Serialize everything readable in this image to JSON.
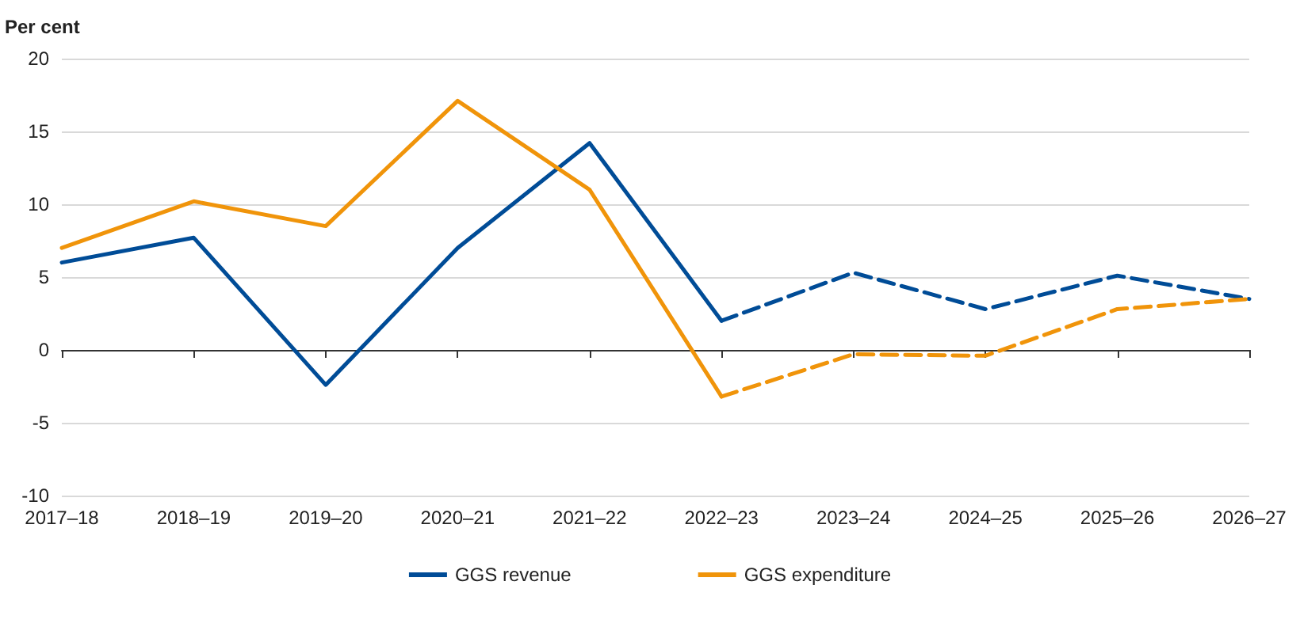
{
  "chart_data": {
    "type": "line",
    "ylabel": "Per cent",
    "categories": [
      "2017–18",
      "2018–19",
      "2019–20",
      "2020–21",
      "2021–22",
      "2022–23",
      "2023–24",
      "2024–25",
      "2025–26",
      "2026–27"
    ],
    "series": [
      {
        "name": "GGS revenue",
        "color": "#004c97",
        "line_style": "solid",
        "values": [
          6.0,
          7.7,
          -2.4,
          7.0,
          14.2,
          2.0,
          null,
          null,
          null,
          null
        ]
      },
      {
        "name": "GGS expenditure",
        "color": "#f0940a",
        "line_style": "solid",
        "values": [
          7.0,
          10.2,
          8.5,
          17.1,
          11.0,
          -3.2,
          null,
          null,
          null,
          null
        ]
      },
      {
        "color": "#004c97",
        "line_style": "dashed",
        "values": [
          null,
          null,
          null,
          null,
          null,
          2.0,
          5.3,
          2.8,
          5.1,
          3.5
        ]
      },
      {
        "color": "#f0940a",
        "line_style": "dashed",
        "values": [
          null,
          null,
          null,
          null,
          null,
          -3.2,
          -0.3,
          -0.4,
          2.8,
          3.5
        ]
      }
    ],
    "ylim": [
      -10,
      20
    ],
    "yticks": [
      -10,
      -5,
      0,
      5,
      10,
      15,
      20
    ],
    "grid": "y",
    "legend": "bottom",
    "marker": "none"
  }
}
